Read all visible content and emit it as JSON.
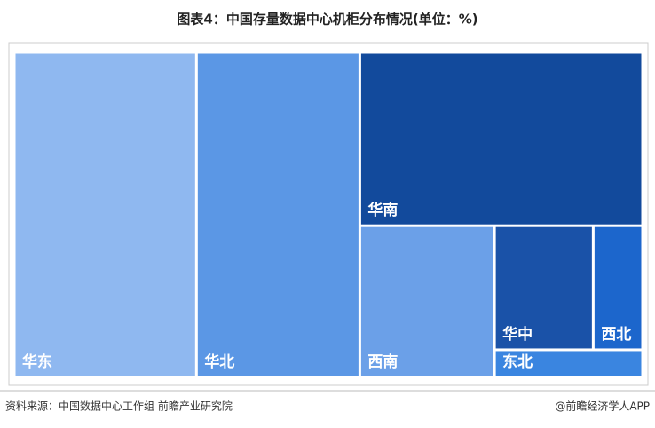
{
  "chart_data": {
    "type": "treemap",
    "title": "图表4：中国存量数据中心机柜分布情况(单位：%)",
    "categories": [
      "华东",
      "华北",
      "华南",
      "西南",
      "华中",
      "西北",
      "东北"
    ],
    "values": [
      29,
      26,
      24,
      10,
      6,
      3,
      2
    ],
    "colors": [
      "#8fb8f0",
      "#5b97e5",
      "#124a9c",
      "#6ba0e8",
      "#1a52a8",
      "#1c66cc",
      "#3a85e0"
    ]
  },
  "footer": {
    "source": "资料来源：中国数据中心工作组 前瞻产业研究院",
    "brand": "@前瞻经济学人APP"
  }
}
